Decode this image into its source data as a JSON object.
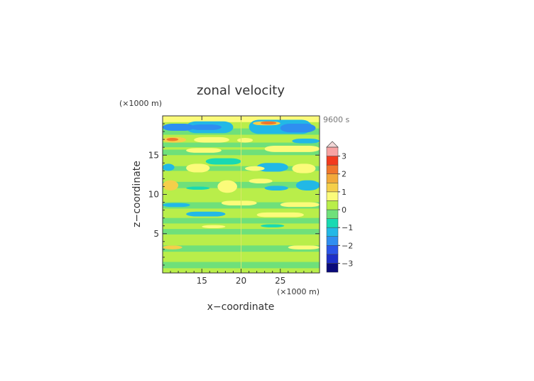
{
  "chart_data": {
    "type": "heatmap",
    "title": "zonal velocity",
    "time_label": "9600 s",
    "xlabel": "x−coordinate",
    "ylabel": "z−coordinate",
    "x_unit": "(×1000 m)",
    "y_unit": "(×1000 m)",
    "xlim": [
      10,
      30
    ],
    "ylim": [
      0,
      20
    ],
    "x_ticks": [
      {
        "value": 15,
        "label": "15"
      },
      {
        "value": 20,
        "label": "20"
      },
      {
        "value": 25,
        "label": "25"
      }
    ],
    "y_ticks": [
      {
        "value": 5,
        "label": "5"
      },
      {
        "value": 10,
        "label": "10"
      },
      {
        "value": 15,
        "label": "15"
      }
    ],
    "colorbar": {
      "levels": [
        -3.5,
        -3,
        -2.5,
        -2,
        -1.5,
        -1,
        -0.5,
        0,
        0.5,
        1,
        1.5,
        2,
        2.5,
        3,
        3.5
      ],
      "colors": [
        "#0a0a7a",
        "#1d2fc8",
        "#2a55e8",
        "#2f8ef0",
        "#22b8e6",
        "#18d9b2",
        "#6fe07a",
        "#b9ee4a",
        "#fbfb7a",
        "#f5cf4a",
        "#f2a93a",
        "#f0762c",
        "#f23a1e",
        "#f7a3a3"
      ],
      "tick_labels": [
        {
          "value": 3,
          "label": "3"
        },
        {
          "value": 2,
          "label": "2"
        },
        {
          "value": 1,
          "label": "1"
        },
        {
          "value": 0,
          "label": "0"
        },
        {
          "value": -1,
          "label": "−1"
        },
        {
          "value": -2,
          "label": "−2"
        },
        {
          "value": -3,
          "label": "−3"
        }
      ],
      "extend": "max"
    },
    "regions": [
      {
        "x": [
          10,
          30
        ],
        "z": [
          0,
          20
        ],
        "value": 0.1
      },
      {
        "x": [
          10,
          30
        ],
        "z": [
          0,
          0.6
        ],
        "value": 0.3
      },
      {
        "x": [
          10,
          30
        ],
        "z": [
          0.6,
          1.4
        ],
        "value": -0.2
      },
      {
        "x": [
          10,
          30
        ],
        "z": [
          2.7,
          3.5
        ],
        "value": -0.2
      },
      {
        "x": [
          10,
          30
        ],
        "z": [
          4.9,
          5.6
        ],
        "value": -0.2
      },
      {
        "x": [
          10,
          30
        ],
        "z": [
          6.3,
          7.0
        ],
        "value": -0.3
      },
      {
        "x": [
          10,
          30
        ],
        "z": [
          8.2,
          9.0
        ],
        "value": -0.3
      },
      {
        "x": [
          10,
          30
        ],
        "z": [
          10.8,
          11.6
        ],
        "value": -0.2
      },
      {
        "x": [
          10,
          30
        ],
        "z": [
          13.0,
          13.6
        ],
        "value": -0.2
      },
      {
        "x": [
          10,
          30
        ],
        "z": [
          15.0,
          15.7
        ],
        "value": -0.2
      },
      {
        "x": [
          10,
          30
        ],
        "z": [
          16.0,
          16.6
        ],
        "value": -0.3
      },
      {
        "x": [
          10,
          30
        ],
        "z": [
          17.6,
          18.4
        ],
        "value": -0.3
      },
      {
        "x": [
          10,
          30
        ],
        "z": [
          19.2,
          20
        ],
        "value": 0.6
      },
      {
        "x": [
          13,
          19
        ],
        "z": [
          17.8,
          19.3
        ],
        "value": -1.2
      },
      {
        "x": [
          10,
          14
        ],
        "z": [
          18.1,
          19.0
        ],
        "value": -2.0
      },
      {
        "x": [
          13.5,
          17.5
        ],
        "z": [
          18.2,
          18.9
        ],
        "value": -1.6
      },
      {
        "x": [
          21,
          29
        ],
        "z": [
          17.7,
          19.5
        ],
        "value": -1.2
      },
      {
        "x": [
          25,
          29.5
        ],
        "z": [
          17.9,
          19.0
        ],
        "value": -2.0
      },
      {
        "x": [
          21.5,
          25
        ],
        "z": [
          18.8,
          19.3
        ],
        "value": 1.3
      },
      {
        "x": [
          22.5,
          24.5
        ],
        "z": [
          18.9,
          19.3
        ],
        "value": 2.2
      },
      {
        "x": [
          10,
          13
        ],
        "z": [
          16.6,
          17.3
        ],
        "value": 1.3
      },
      {
        "x": [
          10.5,
          12
        ],
        "z": [
          16.8,
          17.2
        ],
        "value": 2.0
      },
      {
        "x": [
          14,
          18.5
        ],
        "z": [
          16.6,
          17.3
        ],
        "value": 0.7
      },
      {
        "x": [
          19.5,
          21.5
        ],
        "z": [
          16.6,
          17.2
        ],
        "value": 0.8
      },
      {
        "x": [
          26.5,
          30
        ],
        "z": [
          16.5,
          17.1
        ],
        "value": -1.3
      },
      {
        "x": [
          23,
          30
        ],
        "z": [
          15.4,
          16.2
        ],
        "value": 0.8
      },
      {
        "x": [
          13,
          17.5
        ],
        "z": [
          15.3,
          15.9
        ],
        "value": 0.7
      },
      {
        "x": [
          15.5,
          20
        ],
        "z": [
          13.8,
          14.6
        ],
        "value": -0.9
      },
      {
        "x": [
          10,
          11.5
        ],
        "z": [
          13.0,
          13.9
        ],
        "value": -1.1
      },
      {
        "x": [
          13,
          16
        ],
        "z": [
          12.8,
          13.9
        ],
        "value": 0.8
      },
      {
        "x": [
          22,
          26
        ],
        "z": [
          12.9,
          14.0
        ],
        "value": -1.3
      },
      {
        "x": [
          26.5,
          29.5
        ],
        "z": [
          12.7,
          13.9
        ],
        "value": 0.8
      },
      {
        "x": [
          20.5,
          23
        ],
        "z": [
          13.0,
          13.6
        ],
        "value": 0.6
      },
      {
        "x": [
          17,
          19.5
        ],
        "z": [
          10.2,
          11.8
        ],
        "value": 0.6
      },
      {
        "x": [
          10,
          12
        ],
        "z": [
          10.5,
          11.8
        ],
        "value": 1.3
      },
      {
        "x": [
          27,
          30
        ],
        "z": [
          10.5,
          11.8
        ],
        "value": -1.4
      },
      {
        "x": [
          13,
          16
        ],
        "z": [
          10.6,
          11.0
        ],
        "value": -1.0
      },
      {
        "x": [
          23,
          26
        ],
        "z": [
          10.5,
          11.1
        ],
        "value": -1.1
      },
      {
        "x": [
          21,
          24
        ],
        "z": [
          11.4,
          12.0
        ],
        "value": 0.6
      },
      {
        "x": [
          10,
          13.5
        ],
        "z": [
          8.4,
          8.9
        ],
        "value": -1.2
      },
      {
        "x": [
          25,
          30
        ],
        "z": [
          8.4,
          9.0
        ],
        "value": 0.9
      },
      {
        "x": [
          17.5,
          22
        ],
        "z": [
          8.6,
          9.2
        ],
        "value": 0.6
      },
      {
        "x": [
          13,
          18
        ],
        "z": [
          7.2,
          7.8
        ],
        "value": -1.2
      },
      {
        "x": [
          22,
          28
        ],
        "z": [
          7.1,
          7.7
        ],
        "value": 0.9
      },
      {
        "x": [
          15,
          18
        ],
        "z": [
          5.7,
          6.1
        ],
        "value": 0.9
      },
      {
        "x": [
          22.5,
          25.5
        ],
        "z": [
          5.8,
          6.2
        ],
        "value": -0.9
      },
      {
        "x": [
          10,
          12.5
        ],
        "z": [
          3.0,
          3.5
        ],
        "value": 1.0
      },
      {
        "x": [
          26,
          30
        ],
        "z": [
          3.0,
          3.5
        ],
        "value": 0.6
      }
    ]
  }
}
